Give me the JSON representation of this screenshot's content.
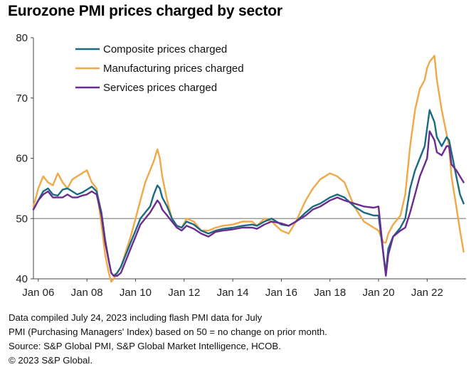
{
  "title": "Eurozone PMI prices charged by sector",
  "notes": [
    "Data compiled July 24, 2023 including flash PMI data for July",
    "PMI (Purchasing Managers' Index) based on 50 = no change on prior month.",
    "Source: S&P Global PMI, S&P Global Market Intelligence, HCOB.",
    "© 2023 S&P Global."
  ],
  "chart_data": {
    "type": "line",
    "title": "Eurozone PMI prices charged by sector",
    "xlabel": "",
    "ylabel": "",
    "xlim": [
      2005.8,
      2023.6
    ],
    "ylim": [
      40,
      80
    ],
    "yticks": [
      40,
      50,
      60,
      70,
      80
    ],
    "xticks": [
      {
        "label": "Jan 06",
        "value": 2006
      },
      {
        "label": "Jan 08",
        "value": 2008
      },
      {
        "label": "Jan 10",
        "value": 2010
      },
      {
        "label": "Jan 12",
        "value": 2012
      },
      {
        "label": "Jan 14",
        "value": 2014
      },
      {
        "label": "Jan 16",
        "value": 2016
      },
      {
        "label": "Jan 18",
        "value": 2018
      },
      {
        "label": "Jan 20",
        "value": 2020
      },
      {
        "label": "Jan 22",
        "value": 2022
      }
    ],
    "reference_line": 50,
    "legend_position": "top-left",
    "series": [
      {
        "name": "Composite prices charged",
        "color": "#1a6b82",
        "x": [
          2005.8,
          2006.0,
          2006.2,
          2006.4,
          2006.6,
          2006.8,
          2007.0,
          2007.2,
          2007.4,
          2007.6,
          2007.8,
          2008.0,
          2008.2,
          2008.4,
          2008.6,
          2008.75,
          2008.9,
          2009.0,
          2009.1,
          2009.25,
          2009.4,
          2009.6,
          2009.8,
          2010.0,
          2010.2,
          2010.4,
          2010.6,
          2010.75,
          2010.9,
          2011.0,
          2011.1,
          2011.3,
          2011.5,
          2011.7,
          2011.9,
          2012.1,
          2012.4,
          2012.7,
          2013.0,
          2013.3,
          2013.6,
          2014.0,
          2014.4,
          2014.8,
          2015.0,
          2015.3,
          2015.6,
          2016.0,
          2016.3,
          2016.6,
          2017.0,
          2017.3,
          2017.6,
          2018.0,
          2018.3,
          2018.6,
          2019.0,
          2019.4,
          2019.8,
          2020.0,
          2020.2,
          2020.3,
          2020.4,
          2020.6,
          2020.9,
          2021.1,
          2021.3,
          2021.5,
          2021.7,
          2021.9,
          2022.0,
          2022.1,
          2022.3,
          2022.4,
          2022.6,
          2022.8,
          2022.9,
          2023.0,
          2023.2,
          2023.35,
          2023.5
        ],
        "values": [
          51.5,
          53,
          54.5,
          55,
          54,
          53.8,
          54.8,
          55,
          54.5,
          54,
          54.3,
          54.8,
          55.3,
          54.5,
          51,
          46.5,
          43,
          41,
          40.5,
          41,
          42,
          44,
          46,
          48,
          50,
          51,
          52,
          54,
          55.5,
          55,
          53.5,
          52,
          50,
          48.8,
          48.5,
          49.5,
          49,
          48,
          47.5,
          48,
          48.3,
          48.5,
          48.8,
          49,
          48.8,
          49.5,
          50,
          49,
          48.8,
          49.5,
          51,
          52,
          52.5,
          53.5,
          54,
          53.5,
          52,
          51,
          50.5,
          50.5,
          44,
          41,
          45,
          47,
          48.5,
          50,
          55,
          58,
          60,
          62,
          65,
          68,
          66,
          63.5,
          62,
          63.5,
          63,
          61,
          57,
          54,
          52.5
        ]
      },
      {
        "name": "Manufacturing prices charged",
        "color": "#f0a848",
        "x": [
          2005.8,
          2006.0,
          2006.2,
          2006.4,
          2006.6,
          2006.8,
          2007.0,
          2007.2,
          2007.4,
          2007.6,
          2007.8,
          2008.0,
          2008.2,
          2008.4,
          2008.6,
          2008.75,
          2008.9,
          2009.0,
          2009.1,
          2009.25,
          2009.4,
          2009.6,
          2009.8,
          2010.0,
          2010.2,
          2010.4,
          2010.6,
          2010.75,
          2010.9,
          2011.0,
          2011.1,
          2011.3,
          2011.5,
          2011.7,
          2011.9,
          2012.1,
          2012.4,
          2012.7,
          2013.0,
          2013.3,
          2013.6,
          2014.0,
          2014.4,
          2014.8,
          2015.0,
          2015.3,
          2015.6,
          2016.0,
          2016.3,
          2016.6,
          2017.0,
          2017.3,
          2017.6,
          2018.0,
          2018.3,
          2018.6,
          2019.0,
          2019.4,
          2019.8,
          2020.0,
          2020.2,
          2020.3,
          2020.4,
          2020.6,
          2020.9,
          2021.1,
          2021.3,
          2021.5,
          2021.7,
          2021.9,
          2022.0,
          2022.1,
          2022.3,
          2022.4,
          2022.6,
          2022.8,
          2022.9,
          2023.0,
          2023.2,
          2023.35,
          2023.5
        ],
        "values": [
          52,
          55,
          57,
          56,
          55.5,
          57.5,
          56,
          55,
          56.5,
          57,
          57.5,
          58,
          56,
          55,
          49,
          44,
          41,
          39.5,
          40,
          41,
          42,
          44.5,
          47,
          50,
          53,
          56,
          58,
          59.5,
          61.5,
          60,
          57,
          53,
          50,
          48.8,
          48.5,
          50,
          49.5,
          48,
          48,
          48.5,
          48.8,
          49,
          49.5,
          49.5,
          48.8,
          50,
          49.5,
          48,
          47.5,
          49.5,
          53,
          55,
          56.5,
          57.5,
          57,
          56,
          52,
          49.5,
          48.5,
          48,
          46,
          46,
          47.5,
          49,
          50.5,
          54,
          62,
          68,
          71.5,
          73,
          75,
          76,
          77,
          73,
          68,
          64,
          62,
          57,
          52,
          48,
          44.5
        ]
      },
      {
        "name": "Services prices charged",
        "color": "#6b2c8f",
        "x": [
          2005.8,
          2006.0,
          2006.2,
          2006.4,
          2006.6,
          2006.8,
          2007.0,
          2007.2,
          2007.4,
          2007.6,
          2007.8,
          2008.0,
          2008.2,
          2008.4,
          2008.6,
          2008.75,
          2008.9,
          2009.0,
          2009.1,
          2009.25,
          2009.4,
          2009.6,
          2009.8,
          2010.0,
          2010.2,
          2010.4,
          2010.6,
          2010.75,
          2010.9,
          2011.0,
          2011.1,
          2011.3,
          2011.5,
          2011.7,
          2011.9,
          2012.1,
          2012.4,
          2012.7,
          2013.0,
          2013.3,
          2013.6,
          2014.0,
          2014.4,
          2014.8,
          2015.0,
          2015.3,
          2015.6,
          2016.0,
          2016.3,
          2016.6,
          2017.0,
          2017.3,
          2017.6,
          2018.0,
          2018.3,
          2018.6,
          2019.0,
          2019.4,
          2019.8,
          2020.0,
          2020.2,
          2020.3,
          2020.4,
          2020.6,
          2020.9,
          2021.1,
          2021.3,
          2021.5,
          2021.7,
          2021.9,
          2022.0,
          2022.1,
          2022.3,
          2022.4,
          2022.6,
          2022.8,
          2022.9,
          2023.0,
          2023.2,
          2023.35,
          2023.5
        ],
        "values": [
          51.5,
          53,
          54,
          54.5,
          53.5,
          53.5,
          53.5,
          54,
          53.5,
          53.5,
          53.8,
          54,
          54.5,
          54,
          50.5,
          46,
          43,
          41,
          40.5,
          40.5,
          41,
          43,
          45,
          47,
          49,
          50,
          51,
          52,
          53,
          52.5,
          51.5,
          50.5,
          49.5,
          48.5,
          48,
          48.8,
          48.3,
          47.5,
          47,
          47.8,
          48,
          48.2,
          48.5,
          48.5,
          48.3,
          49,
          49.5,
          49.2,
          48.8,
          49.5,
          50.5,
          51.5,
          52,
          53,
          53.5,
          53,
          52.5,
          52,
          51.8,
          52,
          44,
          40.5,
          44,
          47,
          48,
          48.5,
          51,
          54,
          57,
          59,
          60,
          64.5,
          63,
          61,
          60.5,
          62,
          62,
          59,
          58,
          57,
          56
        ]
      }
    ]
  }
}
